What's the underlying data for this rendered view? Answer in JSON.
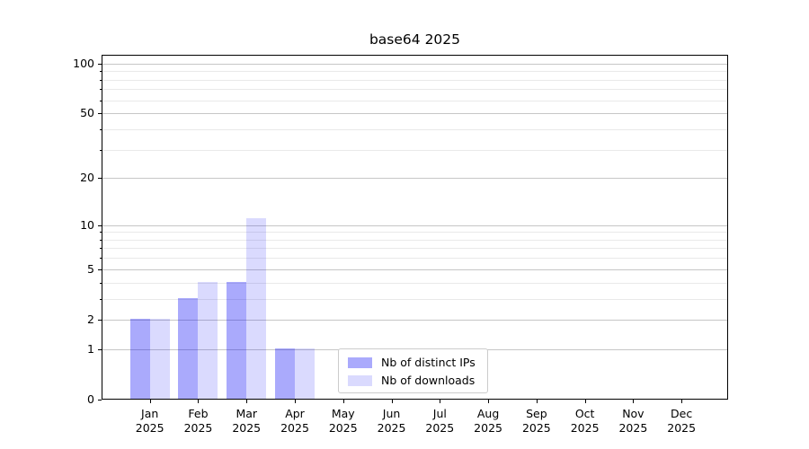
{
  "chart_data": {
    "type": "bar",
    "title": "base64 2025",
    "categories": [
      "Jan",
      "Feb",
      "Mar",
      "Apr",
      "May",
      "Jun",
      "Jul",
      "Aug",
      "Sep",
      "Oct",
      "Nov",
      "Dec"
    ],
    "category_sublabel": "2025",
    "series": [
      {
        "name": "Nb of distinct IPs",
        "color": "rgba(5,5,245,0.34)",
        "values": [
          2,
          3,
          4,
          1,
          0,
          0,
          0,
          0,
          0,
          0,
          0,
          0
        ]
      },
      {
        "name": "Nb of downloads",
        "color": "rgba(5,5,245,0.15)",
        "values": [
          2,
          4,
          11,
          1,
          0,
          0,
          0,
          0,
          0,
          0,
          0,
          0
        ]
      }
    ],
    "yscale": "log1p",
    "ylim": [
      0,
      113
    ],
    "y_major_ticks": [
      0,
      1,
      2,
      5,
      10,
      20,
      50,
      100
    ],
    "y_minor_ticks": [
      3,
      4,
      6,
      7,
      8,
      9,
      30,
      40,
      60,
      70,
      80,
      90
    ],
    "grid": "both",
    "legend_position": "lower center",
    "colors": {
      "major_grid": "#c6c6c6",
      "minor_grid": "#e9e9e9",
      "spine": "#000000",
      "background": "#ffffff"
    }
  }
}
